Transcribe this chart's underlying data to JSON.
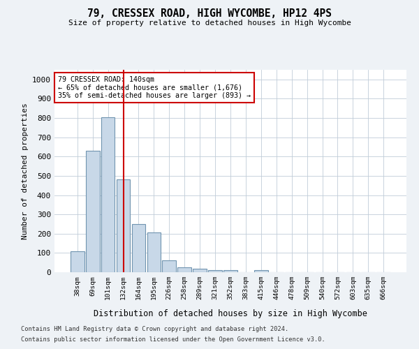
{
  "title_line1": "79, CRESSEX ROAD, HIGH WYCOMBE, HP12 4PS",
  "title_line2": "Size of property relative to detached houses in High Wycombe",
  "xlabel": "Distribution of detached houses by size in High Wycombe",
  "ylabel": "Number of detached properties",
  "categories": [
    "38sqm",
    "69sqm",
    "101sqm",
    "132sqm",
    "164sqm",
    "195sqm",
    "226sqm",
    "258sqm",
    "289sqm",
    "321sqm",
    "352sqm",
    "383sqm",
    "415sqm",
    "446sqm",
    "478sqm",
    "509sqm",
    "540sqm",
    "572sqm",
    "603sqm",
    "635sqm",
    "666sqm"
  ],
  "values": [
    108,
    630,
    805,
    480,
    250,
    207,
    60,
    25,
    17,
    10,
    10,
    0,
    10,
    0,
    0,
    0,
    0,
    0,
    0,
    0,
    0
  ],
  "bar_color": "#c8d8e8",
  "bar_edge_color": "#7094b0",
  "reference_line_x": 3,
  "reference_line_color": "#cc0000",
  "annotation_line1": "79 CRESSEX ROAD: 140sqm",
  "annotation_line2": "← 65% of detached houses are smaller (1,676)",
  "annotation_line3": "35% of semi-detached houses are larger (893) →",
  "annotation_box_color": "#ffffff",
  "annotation_box_edge_color": "#cc0000",
  "ylim": [
    0,
    1050
  ],
  "yticks": [
    0,
    100,
    200,
    300,
    400,
    500,
    600,
    700,
    800,
    900,
    1000
  ],
  "footnote_line1": "Contains HM Land Registry data © Crown copyright and database right 2024.",
  "footnote_line2": "Contains public sector information licensed under the Open Government Licence v3.0.",
  "background_color": "#eef2f6",
  "plot_background_color": "#ffffff"
}
